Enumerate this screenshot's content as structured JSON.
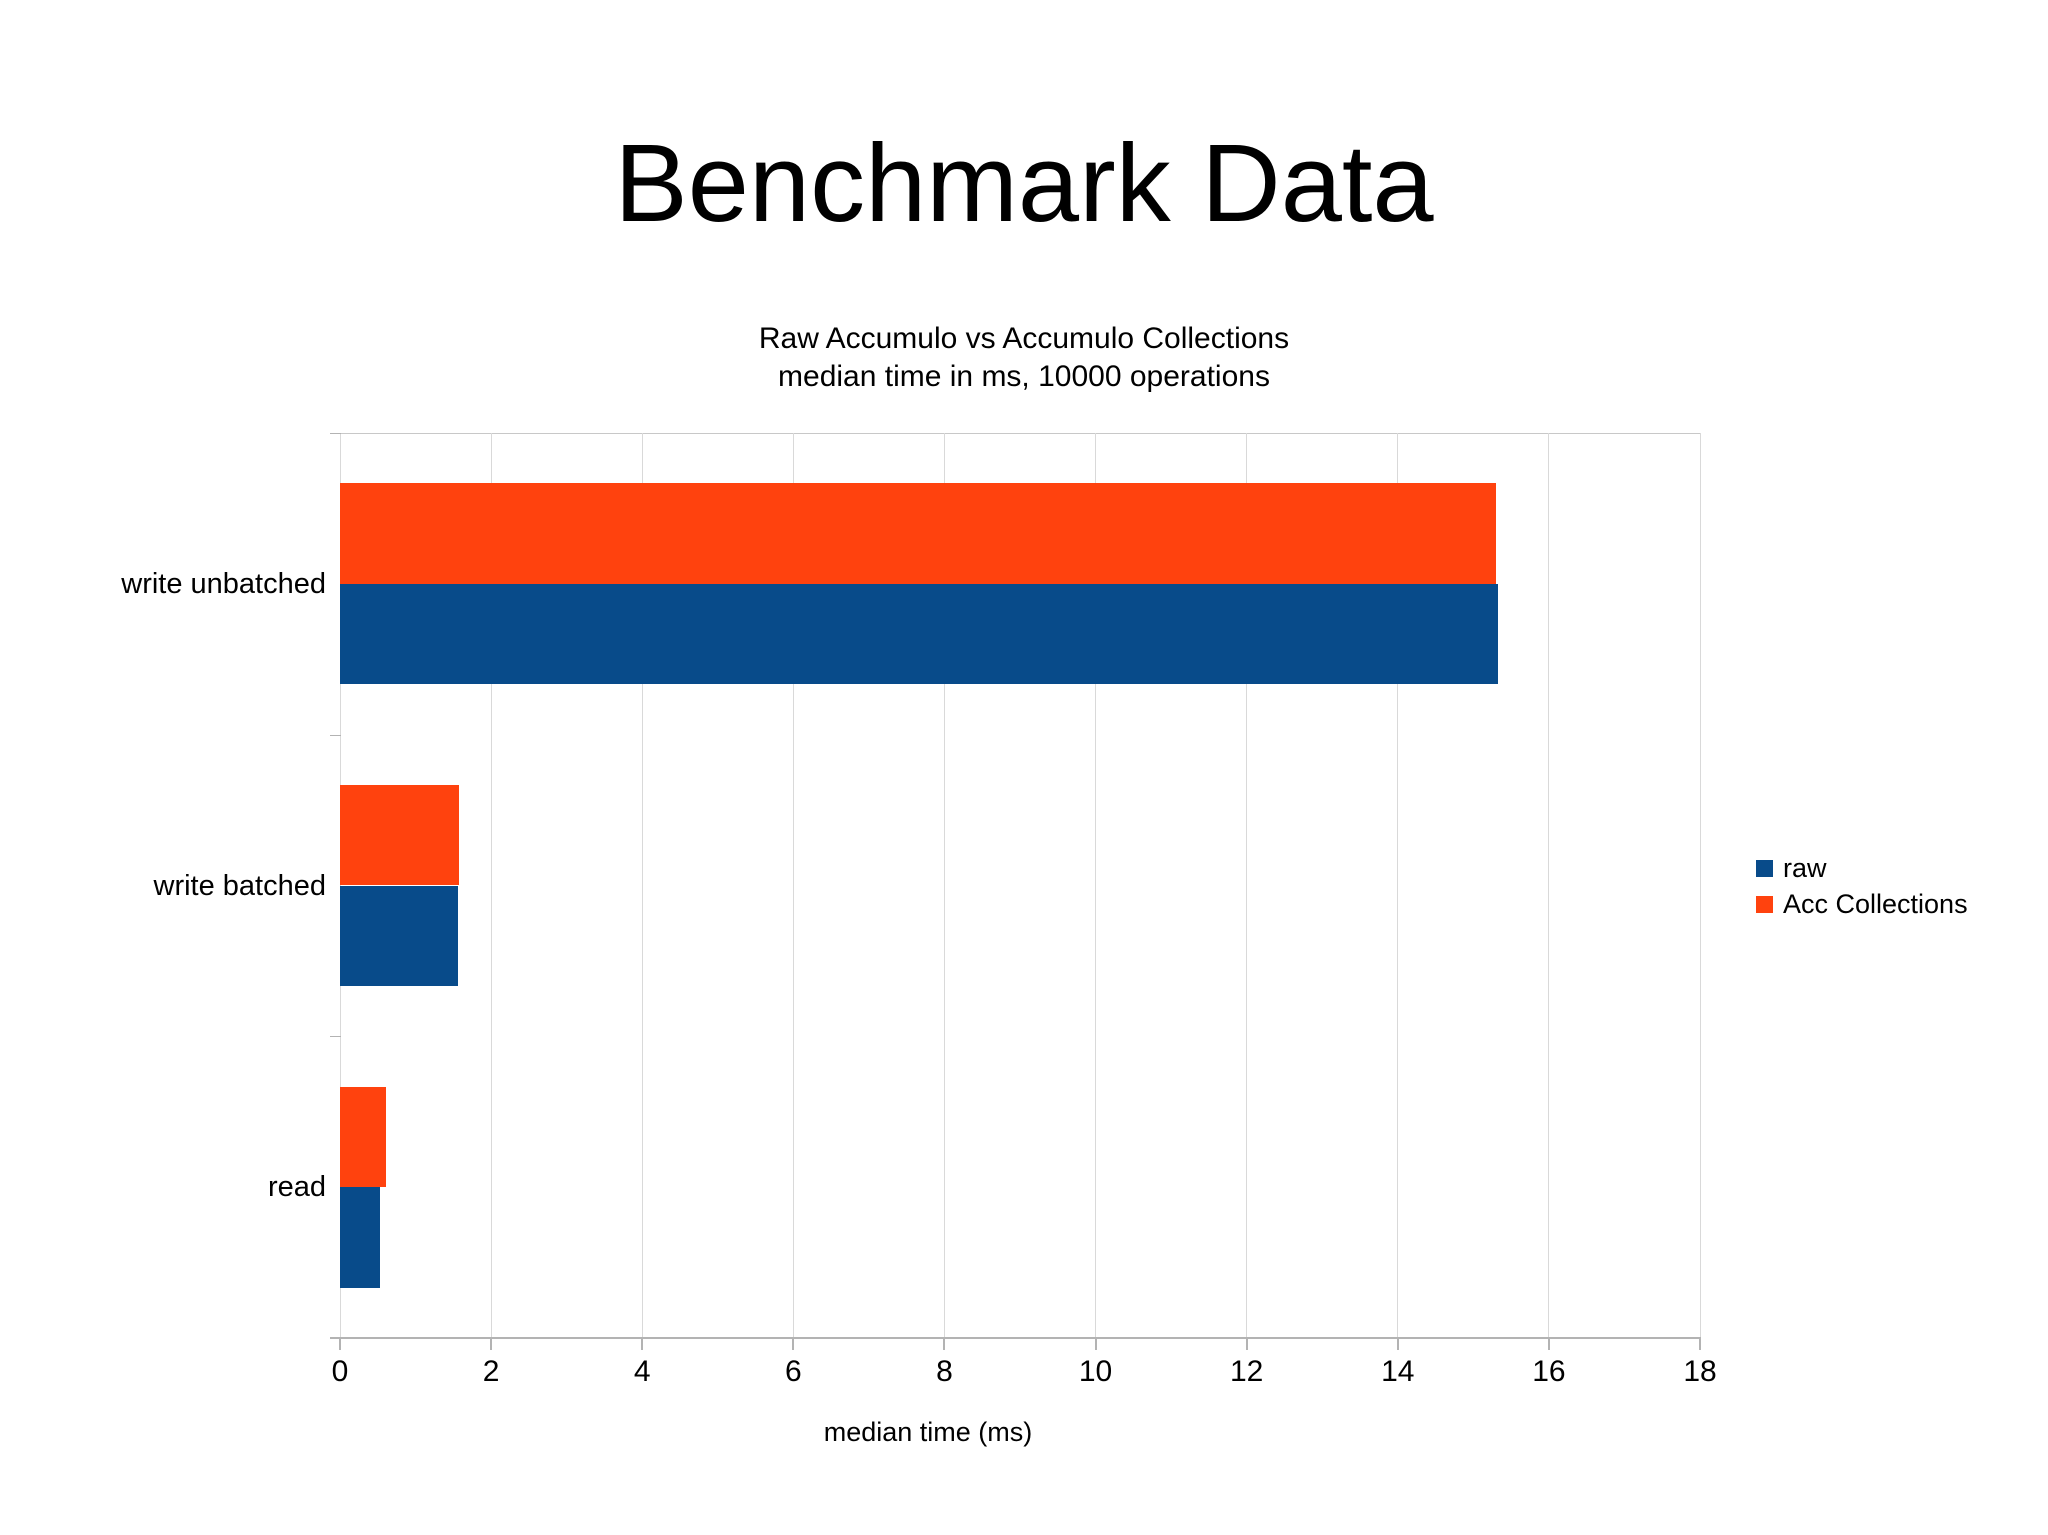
{
  "chart_data": {
    "type": "bar",
    "orientation": "horizontal",
    "title": "Benchmark Data",
    "subtitle_lines": [
      "Raw Accumulo vs Accumulo Collections",
      "median time in ms, 10000 operations"
    ],
    "categories": [
      "write unbatched",
      "write batched",
      "read"
    ],
    "series": [
      {
        "name": "raw",
        "color": "#084b8a",
        "values": [
          15.32,
          1.56,
          0.53
        ]
      },
      {
        "name": "Acc Collections",
        "color": "#ff420e",
        "values": [
          15.3,
          1.58,
          0.61
        ]
      }
    ],
    "xlabel": "median time (ms)",
    "xlim": [
      0,
      18
    ],
    "xticks": [
      0,
      2,
      4,
      6,
      8,
      10,
      12,
      14,
      16,
      18
    ],
    "grid": "vertical",
    "legend_position": "right",
    "colors": {
      "gridline": "#d9d9d9",
      "axis_line": "#b3b3b3",
      "text": "#000000",
      "background": "#ffffff"
    }
  }
}
